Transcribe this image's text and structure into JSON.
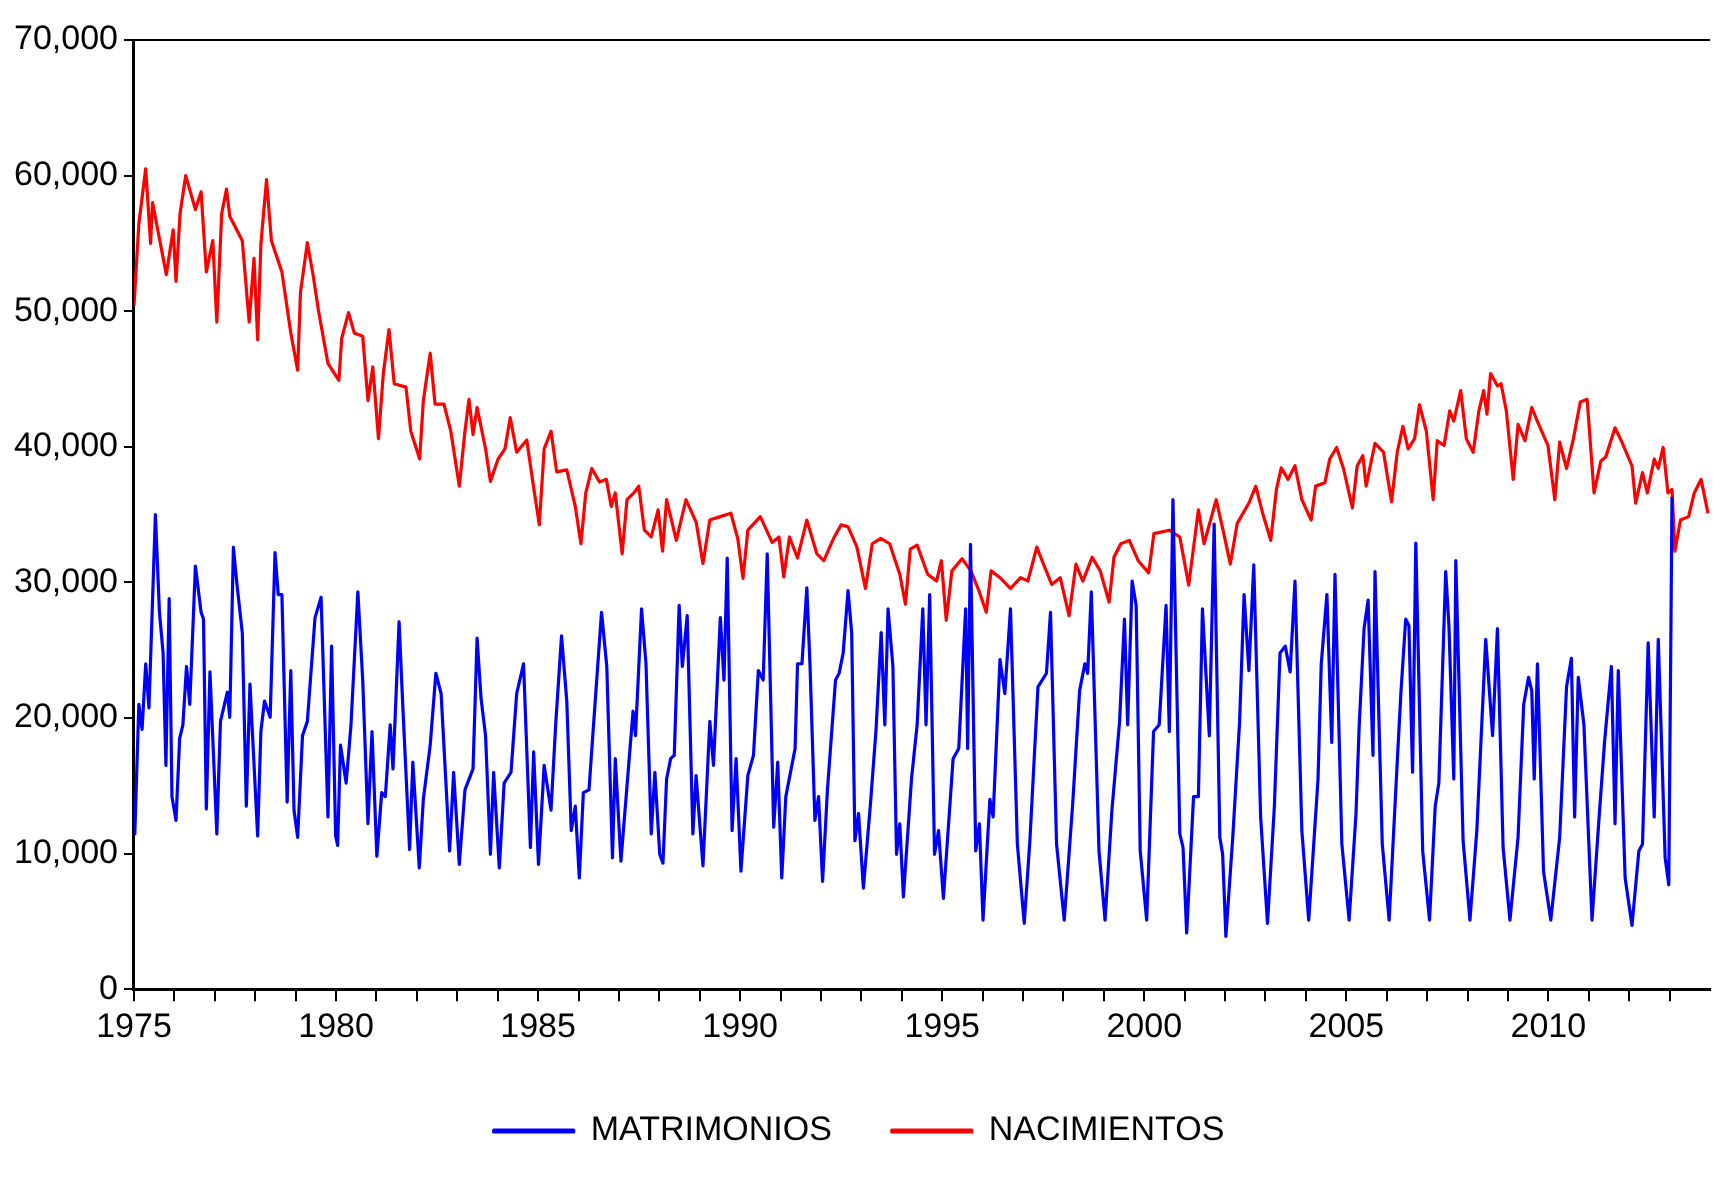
{
  "chart_data": {
    "type": "line",
    "legend": "bottom",
    "marker": "none",
    "line_style": "solid",
    "grid": false,
    "xlim": [
      1975,
      2014
    ],
    "ylim": [
      0,
      70000
    ],
    "xticks": [
      1975,
      {
        "value": 1976,
        "label": null
      },
      {
        "value": 1977,
        "label": null
      },
      {
        "value": 1978,
        "label": null
      },
      {
        "value": 1979,
        "label": null
      },
      1980,
      {
        "value": 1981,
        "label": null
      },
      {
        "value": 1982,
        "label": null
      },
      {
        "value": 1983,
        "label": null
      },
      {
        "value": 1984,
        "label": null
      },
      1985,
      {
        "value": 1986,
        "label": null
      },
      {
        "value": 1987,
        "label": null
      },
      {
        "value": 1988,
        "label": null
      },
      {
        "value": 1989,
        "label": null
      },
      1990,
      {
        "value": 1991,
        "label": null
      },
      {
        "value": 1992,
        "label": null
      },
      {
        "value": 1993,
        "label": null
      },
      {
        "value": 1994,
        "label": null
      },
      1995,
      {
        "value": 1996,
        "label": null
      },
      {
        "value": 1997,
        "label": null
      },
      {
        "value": 1998,
        "label": null
      },
      {
        "value": 1999,
        "label": null
      },
      2000,
      {
        "value": 2001,
        "label": null
      },
      {
        "value": 2002,
        "label": null
      },
      {
        "value": 2003,
        "label": null
      },
      {
        "value": 2004,
        "label": null
      },
      2005,
      {
        "value": 2006,
        "label": null
      },
      {
        "value": 2007,
        "label": null
      },
      {
        "value": 2008,
        "label": null
      },
      {
        "value": 2009,
        "label": null
      },
      2010,
      {
        "value": 2011,
        "label": null
      },
      {
        "value": 2012,
        "label": null
      },
      {
        "value": 2013,
        "label": null
      }
    ],
    "yticks": [
      {
        "value": 0,
        "label": "0"
      },
      {
        "value": 10000,
        "label": "10,000"
      },
      {
        "value": 20000,
        "label": "20,000"
      },
      {
        "value": 30000,
        "label": "30,000"
      },
      {
        "value": 40000,
        "label": "40,000"
      },
      {
        "value": 50000,
        "label": "50,000"
      },
      {
        "value": 60000,
        "label": "60,000"
      },
      {
        "value": 70000,
        "label": "70,000"
      }
    ],
    "series": [
      {
        "name": "MATRIMONIOS",
        "color": "#0000ff",
        "x": [
          1975,
          1975.02,
          1975.12,
          1975.2,
          1975.29,
          1975.37,
          1975.53,
          1975.63,
          1975.72,
          1975.79,
          1975.87,
          1975.94,
          1976.04,
          1976.13,
          1976.21,
          1976.3,
          1976.38,
          1976.52,
          1976.66,
          1976.72,
          1976.79,
          1976.88,
          1977.05,
          1977.14,
          1977.31,
          1977.37,
          1977.46,
          1977.55,
          1977.68,
          1977.78,
          1977.87,
          1978.06,
          1978.14,
          1978.23,
          1978.37,
          1978.49,
          1978.57,
          1978.66,
          1978.79,
          1978.88,
          1978.96,
          1979.05,
          1979.17,
          1979.29,
          1979.48,
          1979.63,
          1979.8,
          1979.89,
          1979.99,
          1980.04,
          1980.11,
          1980.25,
          1980.37,
          1980.54,
          1980.66,
          1980.79,
          1980.89,
          1981.01,
          1981.13,
          1981.22,
          1981.34,
          1981.41,
          1981.56,
          1981.65,
          1981.82,
          1981.9,
          1982.06,
          1982.16,
          1982.33,
          1982.47,
          1982.6,
          1982.81,
          1982.91,
          1983.05,
          1983.19,
          1983.39,
          1983.49,
          1983.59,
          1983.7,
          1983.82,
          1983.9,
          1984.04,
          1984.16,
          1984.33,
          1984.47,
          1984.64,
          1984.81,
          1984.89,
          1985.01,
          1985.15,
          1985.32,
          1985.44,
          1985.58,
          1985.71,
          1985.82,
          1985.92,
          1986.02,
          1986.12,
          1986.26,
          1986.36,
          1986.57,
          1986.7,
          1986.84,
          1986.91,
          1987.05,
          1987.2,
          1987.35,
          1987.41,
          1987.56,
          1987.67,
          1987.8,
          1987.89,
          1988.01,
          1988.09,
          1988.18,
          1988.28,
          1988.37,
          1988.49,
          1988.57,
          1988.69,
          1988.83,
          1988.91,
          1989.08,
          1989.25,
          1989.34,
          1989.51,
          1989.6,
          1989.68,
          1989.8,
          1989.9,
          1990.02,
          1990.19,
          1990.33,
          1990.45,
          1990.57,
          1990.67,
          1990.83,
          1990.93,
          1991.03,
          1991.13,
          1991.36,
          1991.42,
          1991.53,
          1991.65,
          1991.73,
          1991.85,
          1991.94,
          1992.04,
          1992.16,
          1992.36,
          1992.45,
          1992.55,
          1992.67,
          1992.76,
          1992.84,
          1992.93,
          1993.05,
          1993.22,
          1993.36,
          1993.49,
          1993.58,
          1993.66,
          1993.78,
          1993.87,
          1993.95,
          1994.04,
          1994.24,
          1994.38,
          1994.52,
          1994.6,
          1994.69,
          1994.81,
          1994.91,
          1995.03,
          1995.27,
          1995.41,
          1995.58,
          1995.63,
          1995.7,
          1995.83,
          1995.92,
          1996.01,
          1996.18,
          1996.26,
          1996.43,
          1996.55,
          1996.69,
          1996.86,
          1997.03,
          1997.17,
          1997.37,
          1997.58,
          1997.68,
          1997.83,
          1998.02,
          1998.23,
          1998.4,
          1998.53,
          1998.6,
          1998.69,
          1998.88,
          1999.03,
          1999.2,
          1999.39,
          1999.51,
          1999.59,
          1999.7,
          1999.8,
          1999.9,
          2000.06,
          2000.23,
          2000.37,
          2000.54,
          2000.62,
          2000.71,
          2000.88,
          2000.96,
          2001.05,
          2001.22,
          2001.34,
          2001.44,
          2001.61,
          2001.73,
          2001.87,
          2001.94,
          2002.02,
          2002.19,
          2002.36,
          2002.47,
          2002.59,
          2002.71,
          2002.88,
          2003.05,
          2003.22,
          2003.36,
          2003.49,
          2003.61,
          2003.73,
          2003.9,
          2004.07,
          2004.3,
          2004.38,
          2004.52,
          2004.64,
          2004.72,
          2004.89,
          2005.07,
          2005.24,
          2005.32,
          2005.44,
          2005.54,
          2005.66,
          2005.71,
          2005.89,
          2006.06,
          2006.26,
          2006.35,
          2006.47,
          2006.55,
          2006.64,
          2006.72,
          2006.89,
          2007.06,
          2007.2,
          2007.29,
          2007.46,
          2007.54,
          2007.66,
          2007.71,
          2007.89,
          2008.06,
          2008.23,
          2008.45,
          2008.62,
          2008.74,
          2008.88,
          2009.05,
          2009.25,
          2009.39,
          2009.51,
          2009.59,
          2009.65,
          2009.73,
          2009.88,
          2010.06,
          2010.28,
          2010.45,
          2010.57,
          2010.65,
          2010.74,
          2010.88,
          2011.08,
          2011.25,
          2011.39,
          2011.56,
          2011.65,
          2011.73,
          2011.9,
          2012.07,
          2012.24,
          2012.33,
          2012.47,
          2012.62,
          2012.72,
          2012.89,
          2012.98,
          2013.06
        ],
        "values": [
          13700,
          11450,
          21000,
          19150,
          24000,
          20750,
          35000,
          27800,
          24800,
          16500,
          28800,
          14200,
          12450,
          18500,
          19500,
          23800,
          21000,
          31200,
          27800,
          27300,
          13300,
          23400,
          11450,
          19750,
          21900,
          20050,
          32600,
          29800,
          26300,
          13500,
          22500,
          11300,
          19000,
          21250,
          20050,
          32200,
          29100,
          29100,
          13800,
          23500,
          13200,
          11200,
          18700,
          19750,
          27400,
          28900,
          12700,
          25300,
          11300,
          10600,
          18000,
          15200,
          19500,
          29300,
          22800,
          12200,
          19000,
          9800,
          14500,
          14200,
          19500,
          16250,
          27100,
          21000,
          10300,
          16750,
          8950,
          14000,
          18000,
          23300,
          21800,
          10200,
          16000,
          9200,
          14700,
          16250,
          25900,
          21400,
          18700,
          9950,
          16000,
          8950,
          15200,
          16000,
          21800,
          24000,
          10450,
          17500,
          9200,
          16500,
          13200,
          19750,
          26050,
          21250,
          11700,
          13500,
          8200,
          14500,
          14700,
          19000,
          27800,
          23800,
          9700,
          17000,
          9450,
          15000,
          20500,
          18700,
          28050,
          24000,
          11450,
          16000,
          9950,
          9300,
          15500,
          17000,
          17250,
          28300,
          23800,
          27550,
          11450,
          15750,
          9100,
          19750,
          16500,
          27400,
          22800,
          31800,
          11700,
          17000,
          8700,
          15750,
          17250,
          23500,
          22800,
          32100,
          11950,
          16750,
          8200,
          14200,
          17750,
          24000,
          24000,
          29600,
          23800,
          12450,
          14200,
          7950,
          14700,
          22800,
          23300,
          24800,
          29400,
          26300,
          10950,
          12950,
          7450,
          13500,
          19000,
          26300,
          19500,
          28050,
          23800,
          9950,
          12200,
          6800,
          15500,
          19500,
          28050,
          19500,
          29100,
          9950,
          11700,
          6700,
          17000,
          17750,
          28050,
          17750,
          32800,
          10200,
          12200,
          5100,
          14000,
          12700,
          24300,
          21800,
          28050,
          10700,
          4850,
          10950,
          22300,
          23300,
          27800,
          10700,
          5100,
          13700,
          22000,
          24000,
          23300,
          29300,
          10200,
          5100,
          13200,
          19750,
          27300,
          19500,
          30100,
          28300,
          10200,
          5100,
          19000,
          19500,
          28300,
          19000,
          36100,
          11450,
          10450,
          4150,
          14200,
          14200,
          28050,
          18700,
          34300,
          11200,
          9950,
          3900,
          11200,
          19750,
          29100,
          23500,
          31300,
          12700,
          4850,
          13500,
          24800,
          25300,
          23400,
          30100,
          11700,
          5100,
          15500,
          24000,
          29100,
          18200,
          30600,
          10700,
          5100,
          12950,
          19500,
          26600,
          28700,
          17250,
          30800,
          10700,
          5100,
          16750,
          21800,
          27300,
          26800,
          16000,
          32900,
          10200,
          5100,
          13500,
          15200,
          30800,
          26800,
          15500,
          31600,
          10950,
          5100,
          11700,
          25800,
          18700,
          26600,
          10450,
          5100,
          11200,
          21000,
          23000,
          22000,
          15500,
          24000,
          8700,
          5100,
          11200,
          22300,
          24400,
          12700,
          23000,
          19500,
          5100,
          12450,
          18200,
          23800,
          12200,
          23500,
          8200,
          4700,
          10200,
          10700,
          25550,
          12700,
          25800,
          9700,
          7700,
          36300
        ]
      },
      {
        "name": "NACIMIENTOS",
        "color": "#ff0000",
        "x": [
          1975,
          1975.12,
          1975.29,
          1975.41,
          1975.46,
          1975.8,
          1975.97,
          1976.04,
          1976.14,
          1976.28,
          1976.52,
          1976.66,
          1976.79,
          1976.95,
          1977.05,
          1977.17,
          1977.29,
          1977.37,
          1977.68,
          1977.85,
          1977.97,
          1978.06,
          1978.14,
          1978.28,
          1978.4,
          1978.66,
          1978.88,
          1979.05,
          1979.12,
          1979.29,
          1979.43,
          1979.56,
          1979.8,
          1980.07,
          1980.14,
          1980.31,
          1980.45,
          1980.66,
          1980.79,
          1980.91,
          1981.05,
          1981.17,
          1981.31,
          1981.44,
          1981.73,
          1981.85,
          1982.07,
          1982.16,
          1982.33,
          1982.45,
          1982.67,
          1982.84,
          1983.05,
          1983.19,
          1983.29,
          1983.39,
          1983.49,
          1983.7,
          1983.82,
          1984.01,
          1984.18,
          1984.31,
          1984.47,
          1984.72,
          1984.86,
          1985.03,
          1985.15,
          1985.32,
          1985.46,
          1985.71,
          1985.92,
          1986.06,
          1986.18,
          1986.33,
          1986.52,
          1986.69,
          1986.81,
          1986.91,
          1987.08,
          1987.2,
          1987.37,
          1987.49,
          1987.63,
          1987.8,
          1987.97,
          1988.08,
          1988.18,
          1988.42,
          1988.66,
          1988.91,
          1989.08,
          1989.25,
          1989.51,
          1989.77,
          1989.94,
          1990.07,
          1990.19,
          1990.5,
          1990.79,
          1990.96,
          1991.08,
          1991.22,
          1991.42,
          1991.65,
          1991.9,
          1992.07,
          1992.33,
          1992.5,
          1992.67,
          1992.89,
          1993.1,
          1993.27,
          1993.48,
          1993.7,
          1993.95,
          1994.09,
          1994.21,
          1994.38,
          1994.64,
          1994.86,
          1994.98,
          1995.1,
          1995.24,
          1995.49,
          1995.71,
          1995.92,
          1996.09,
          1996.21,
          1996.43,
          1996.69,
          1996.94,
          1997.12,
          1997.34,
          1997.54,
          1997.71,
          1997.92,
          1998.14,
          1998.31,
          1998.48,
          1998.71,
          1998.91,
          1999.13,
          1999.25,
          1999.42,
          1999.63,
          1999.85,
          2000.11,
          2000.24,
          2000.62,
          2000.88,
          2001.1,
          2001.34,
          2001.48,
          2001.78,
          2001.95,
          2002.13,
          2002.3,
          2002.59,
          2002.76,
          2002.93,
          2003.13,
          2003.27,
          2003.39,
          2003.56,
          2003.73,
          2003.9,
          2004.13,
          2004.24,
          2004.47,
          2004.59,
          2004.76,
          2004.93,
          2005.15,
          2005.27,
          2005.41,
          2005.49,
          2005.71,
          2005.92,
          2006.12,
          2006.26,
          2006.4,
          2006.53,
          2006.69,
          2006.81,
          2006.98,
          2007.15,
          2007.25,
          2007.42,
          2007.56,
          2007.66,
          2007.83,
          2007.97,
          2008.14,
          2008.28,
          2008.4,
          2008.48,
          2008.57,
          2008.74,
          2008.83,
          2008.96,
          2009.13,
          2009.25,
          2009.42,
          2009.59,
          2009.76,
          2009.99,
          2010.16,
          2010.28,
          2010.45,
          2010.62,
          2010.79,
          2010.96,
          2011.13,
          2011.3,
          2011.42,
          2011.65,
          2011.82,
          2012.07,
          2012.16,
          2012.33,
          2012.45,
          2012.62,
          2012.72,
          2012.84,
          2012.96,
          2013.06,
          2013.13,
          2013.27,
          2013.47,
          2013.61,
          2013.78,
          2013.95
        ],
        "values": [
          50400,
          56450,
          60500,
          55000,
          58000,
          52700,
          56000,
          52200,
          57200,
          60000,
          57500,
          58800,
          52900,
          55200,
          49200,
          57200,
          59000,
          57000,
          55200,
          49200,
          53900,
          47900,
          54950,
          59700,
          55200,
          52900,
          48400,
          45650,
          51400,
          55050,
          52700,
          50150,
          46150,
          44900,
          48000,
          49900,
          48400,
          48150,
          43400,
          45900,
          40600,
          45400,
          48650,
          44650,
          44400,
          41150,
          39100,
          43400,
          46900,
          43150,
          43150,
          41150,
          37100,
          41150,
          43500,
          40900,
          42900,
          39850,
          37450,
          39100,
          39850,
          42150,
          39600,
          40500,
          37600,
          34250,
          39850,
          41150,
          38150,
          38300,
          35600,
          32850,
          36600,
          38400,
          37400,
          37600,
          35600,
          36600,
          32100,
          36100,
          36600,
          37100,
          33850,
          33350,
          35350,
          32300,
          36100,
          33100,
          36100,
          34450,
          31400,
          34600,
          34850,
          35100,
          33250,
          30300,
          33850,
          34850,
          32950,
          33350,
          30400,
          33350,
          31800,
          34600,
          32100,
          31600,
          33350,
          34250,
          34100,
          32600,
          29550,
          32850,
          33250,
          32850,
          30600,
          28400,
          32450,
          32750,
          30600,
          30100,
          31600,
          27200,
          30850,
          31750,
          30850,
          29300,
          27800,
          30850,
          30350,
          29550,
          30350,
          30100,
          32600,
          31100,
          29850,
          30350,
          27550,
          31350,
          30100,
          31850,
          30850,
          28550,
          31850,
          32850,
          33100,
          31600,
          30700,
          33600,
          33850,
          33350,
          29800,
          35350,
          32850,
          36100,
          33850,
          31350,
          34350,
          35850,
          37100,
          35100,
          33100,
          36850,
          38450,
          37600,
          38600,
          36100,
          34600,
          37100,
          37350,
          39100,
          39950,
          38400,
          35500,
          38600,
          39350,
          37100,
          40250,
          39600,
          35950,
          39600,
          41500,
          39850,
          40600,
          43100,
          41150,
          36100,
          40450,
          40100,
          42650,
          41900,
          44150,
          40600,
          39600,
          42650,
          44150,
          42400,
          45400,
          44500,
          44650,
          42650,
          37600,
          41650,
          40450,
          42900,
          41650,
          40100,
          36100,
          40350,
          38400,
          40600,
          43300,
          43500,
          36600,
          38950,
          39250,
          41400,
          40350,
          38600,
          35850,
          38100,
          36600,
          39100,
          38400,
          39950,
          36600,
          36850,
          32300,
          34600,
          34850,
          36600,
          37600,
          35100
        ]
      }
    ]
  }
}
